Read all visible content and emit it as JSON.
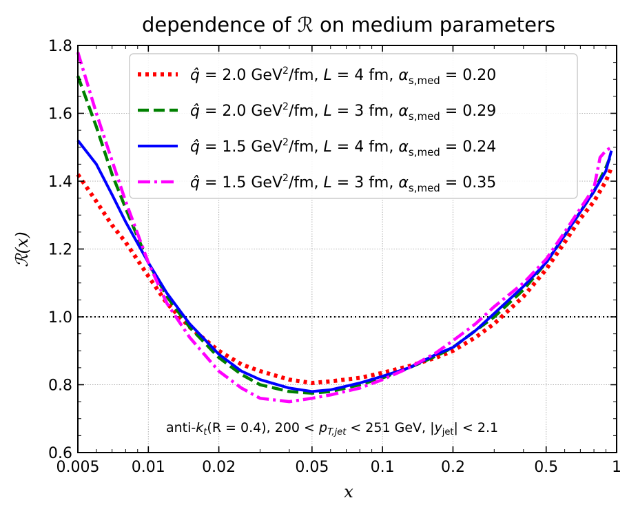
{
  "chart_data": {
    "type": "line",
    "title": "dependence of ℛ on medium parameters",
    "xlabel": "x",
    "ylabel": "ℛ(x)",
    "xscale": "log",
    "xlim": [
      0.005,
      1
    ],
    "ylim": [
      0.6,
      1.8
    ],
    "xticks": [
      0.005,
      0.01,
      0.02,
      0.05,
      0.1,
      0.2,
      0.5,
      1
    ],
    "xtick_labels": [
      "0.005",
      "0.01",
      "0.02",
      "0.05",
      "0.1",
      "0.2",
      "0.5",
      "1"
    ],
    "yticks": [
      0.6,
      0.8,
      1.0,
      1.2,
      1.4,
      1.6,
      1.8
    ],
    "ytick_labels": [
      "0.6",
      "0.8",
      "1.0",
      "1.2",
      "1.4",
      "1.6",
      "1.8"
    ],
    "grid": true,
    "reference_line": 1.0,
    "legend_position": "top-right",
    "annotation": "anti-k_t(R = 0.4), 200 < p_T,jet < 251 GeV, |y_jet| < 2.1",
    "annotation_parts": {
      "a1": "anti-",
      "a2": "k",
      "a3": "t",
      "a4": "(R = 0.4), 200 < ",
      "a5": "p",
      "a6": "T,jet",
      "a7": " < 251 GeV, |",
      "a8": "y",
      "a9": "jet",
      "a10": "| < 2.1"
    },
    "series": [
      {
        "name": "q̂ = 2.0 GeV²/fm, L = 4 fm, αs,med = 0.20",
        "q": "2.0",
        "L": "4",
        "alpha": "0.20",
        "color": "#ff0000",
        "style": "dotted",
        "x": [
          0.005,
          0.006,
          0.007,
          0.008,
          0.01,
          0.012,
          0.015,
          0.02,
          0.025,
          0.03,
          0.04,
          0.05,
          0.06,
          0.08,
          0.1,
          0.13,
          0.17,
          0.2,
          0.25,
          0.3,
          0.4,
          0.5,
          0.6,
          0.7,
          0.8,
          0.9,
          0.95
        ],
        "y": [
          1.42,
          1.34,
          1.27,
          1.22,
          1.12,
          1.04,
          0.97,
          0.9,
          0.86,
          0.84,
          0.815,
          0.805,
          0.81,
          0.82,
          0.835,
          0.855,
          0.88,
          0.9,
          0.94,
          0.98,
          1.06,
          1.14,
          1.22,
          1.29,
          1.34,
          1.4,
          1.44
        ]
      },
      {
        "name": "q̂ = 2.0 GeV²/fm, L = 3 fm, αs,med = 0.29",
        "q": "2.0",
        "L": "3",
        "alpha": "0.29",
        "color": "#008000",
        "style": "dashed",
        "x": [
          0.005,
          0.006,
          0.007,
          0.008,
          0.01,
          0.012,
          0.015,
          0.02,
          0.025,
          0.03,
          0.04,
          0.05,
          0.06,
          0.08,
          0.1,
          0.13,
          0.17,
          0.2,
          0.25,
          0.3,
          0.4,
          0.5,
          0.6,
          0.7,
          0.8,
          0.9,
          0.95
        ],
        "y": [
          1.71,
          1.56,
          1.42,
          1.32,
          1.16,
          1.06,
          0.97,
          0.88,
          0.83,
          0.8,
          0.78,
          0.775,
          0.78,
          0.8,
          0.82,
          0.85,
          0.885,
          0.91,
          0.96,
          1.0,
          1.08,
          1.16,
          1.24,
          1.31,
          1.37,
          1.44,
          1.48
        ]
      },
      {
        "name": "q̂ = 1.5 GeV²/fm, L = 4 fm, αs,med = 0.24",
        "q": "1.5",
        "L": "4",
        "alpha": "0.24",
        "color": "#0000ff",
        "style": "solid",
        "x": [
          0.005,
          0.006,
          0.007,
          0.008,
          0.01,
          0.012,
          0.015,
          0.02,
          0.025,
          0.03,
          0.04,
          0.05,
          0.06,
          0.08,
          0.1,
          0.13,
          0.17,
          0.2,
          0.25,
          0.3,
          0.4,
          0.5,
          0.6,
          0.7,
          0.8,
          0.9,
          0.95
        ],
        "y": [
          1.52,
          1.45,
          1.36,
          1.28,
          1.16,
          1.07,
          0.98,
          0.89,
          0.84,
          0.815,
          0.79,
          0.78,
          0.785,
          0.805,
          0.825,
          0.85,
          0.89,
          0.91,
          0.96,
          1.01,
          1.09,
          1.16,
          1.24,
          1.31,
          1.37,
          1.43,
          1.49
        ]
      },
      {
        "name": "q̂ = 1.5 GeV²/fm, L = 3 fm, αs,med = 0.35",
        "q": "1.5",
        "L": "3",
        "alpha": "0.35",
        "color": "#ff00ff",
        "style": "dashdot",
        "x": [
          0.005,
          0.006,
          0.007,
          0.008,
          0.01,
          0.012,
          0.015,
          0.02,
          0.025,
          0.03,
          0.04,
          0.05,
          0.06,
          0.08,
          0.1,
          0.13,
          0.17,
          0.2,
          0.25,
          0.3,
          0.4,
          0.5,
          0.6,
          0.7,
          0.8,
          0.85,
          0.9,
          0.95
        ],
        "y": [
          1.78,
          1.6,
          1.46,
          1.34,
          1.16,
          1.04,
          0.94,
          0.84,
          0.79,
          0.76,
          0.75,
          0.76,
          0.77,
          0.79,
          0.815,
          0.85,
          0.895,
          0.93,
          0.98,
          1.03,
          1.1,
          1.17,
          1.25,
          1.32,
          1.38,
          1.47,
          1.49,
          1.5
        ]
      }
    ]
  }
}
